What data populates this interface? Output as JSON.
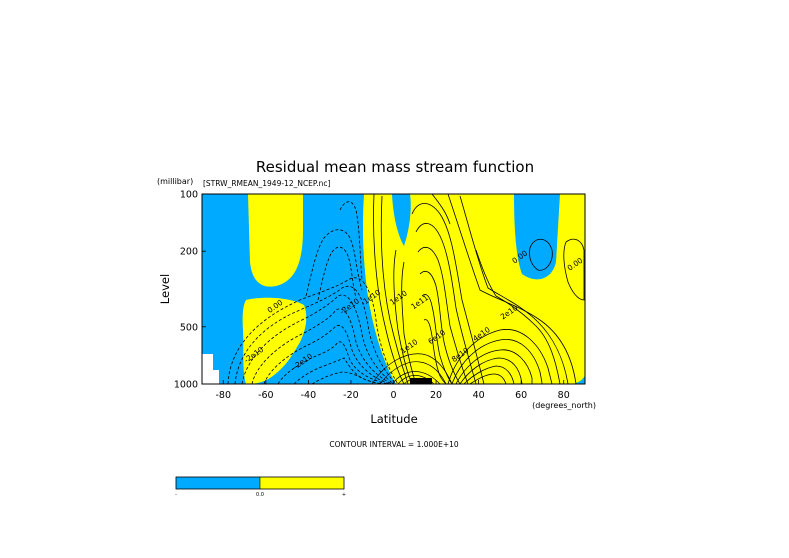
{
  "chart_data": {
    "type": "contour",
    "title": "Residual mean mass stream function",
    "file_label": "[STRW_RMEAN_1949-12_NCEP.nc]",
    "xlabel": "Latitude",
    "x_units": "(degrees_north)",
    "ylabel": "Level",
    "y_units": "(millibar)",
    "xlim": [
      -90,
      90
    ],
    "ylim": [
      1000,
      100
    ],
    "y_scale": "log-pressure",
    "x_ticks": [
      -80,
      -60,
      -40,
      -20,
      0,
      20,
      40,
      60,
      80
    ],
    "y_ticks": [
      100,
      200,
      500,
      1000
    ],
    "contour_interval_text": "CONTOUR INTERVAL = 1.000E+10",
    "contour_interval": 10000000000,
    "contour_labels": [
      {
        "text": "-2e10",
        "lat": -65,
        "lev": 720
      },
      {
        "text": "-2e10",
        "lat": -42,
        "lev": 780
      },
      {
        "text": "0.00",
        "lat": -55,
        "lev": 400
      },
      {
        "text": "-2e10",
        "lat": -20,
        "lev": 400
      },
      {
        "text": "-1e10",
        "lat": -10,
        "lev": 360
      },
      {
        "text": "1e10",
        "lat": 3,
        "lev": 360
      },
      {
        "text": "1e11",
        "lat": 13,
        "lev": 380
      },
      {
        "text": "1e10",
        "lat": 8,
        "lev": 650
      },
      {
        "text": "6e10",
        "lat": 21,
        "lev": 580
      },
      {
        "text": "8e10",
        "lat": 32,
        "lev": 720
      },
      {
        "text": "4e10",
        "lat": 42,
        "lev": 560
      },
      {
        "text": "2e10",
        "lat": 55,
        "lev": 430
      },
      {
        "text": "0.00",
        "lat": 60,
        "lev": 220
      },
      {
        "text": "0.00",
        "lat": 86,
        "lev": 240
      }
    ],
    "colors": {
      "negative": "#00aaff",
      "positive": "#ffff00",
      "missing": "#ffffff"
    },
    "colorbar": {
      "labels": [
        "-",
        "0.0",
        "+"
      ]
    }
  }
}
